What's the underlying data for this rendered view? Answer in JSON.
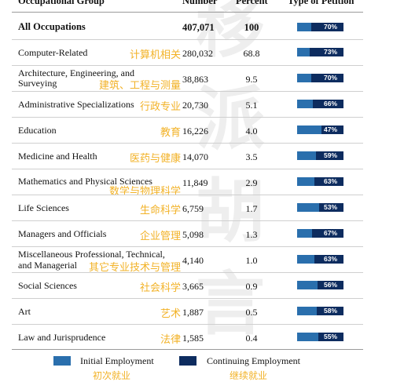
{
  "header": {
    "occupational_group": "Occupational Group",
    "number": "Number",
    "percent": "Percent",
    "type_of_petition": "Type of Petition"
  },
  "rows": [
    {
      "occupation": "All Occupations",
      "cn": "",
      "number": "407,071",
      "percent": "100",
      "initial_pct": 70,
      "label": "70%"
    },
    {
      "occupation": "Computer-Related",
      "cn": "计算机相关",
      "number": "280,032",
      "percent": "68.8",
      "initial_pct": 73,
      "label": "73%"
    },
    {
      "occupation": "Architecture, Engineering, and",
      "occupation_line2": "Surveying",
      "cn": "建筑、工程与测量",
      "number": "38,863",
      "percent": "9.5",
      "initial_pct": 70,
      "label": "70%"
    },
    {
      "occupation": "Administrative Specializations",
      "cn": "行政专业",
      "number": "20,730",
      "percent": "5.1",
      "initial_pct": 66,
      "label": "66%"
    },
    {
      "occupation": "Education",
      "cn": "教育",
      "number": "16,226",
      "percent": "4.0",
      "initial_pct": 47,
      "label": "47%"
    },
    {
      "occupation": "Medicine and Health",
      "cn": "医药与健康",
      "number": "14,070",
      "percent": "3.5",
      "initial_pct": 59,
      "label": "59%"
    },
    {
      "occupation": "Mathematics and Physical Sciences",
      "cn": "数学与物理科学",
      "number": "11,849",
      "percent": "2.9",
      "initial_pct": 63,
      "label": "63%"
    },
    {
      "occupation": "Life Sciences",
      "cn": "生命科学",
      "number": "6,759",
      "percent": "1.7",
      "initial_pct": 53,
      "label": "53%"
    },
    {
      "occupation": "Managers and Officials",
      "cn": "企业管理",
      "number": "5,098",
      "percent": "1.3",
      "initial_pct": 67,
      "label": "67%"
    },
    {
      "occupation": "Miscellaneous Professional, Technical,",
      "occupation_line2": "and Managerial",
      "cn": "其它专业技术与管理",
      "number": "4,140",
      "percent": "1.0",
      "initial_pct": 63,
      "label": "63%"
    },
    {
      "occupation": "Social Sciences",
      "cn": "社会科学",
      "number": "3,665",
      "percent": "0.9",
      "initial_pct": 56,
      "label": "56%"
    },
    {
      "occupation": "Art",
      "cn": "艺术",
      "number": "1,887",
      "percent": "0.5",
      "initial_pct": 58,
      "label": "58%"
    },
    {
      "occupation": "Law and Jurisprudence",
      "cn": "法律",
      "number": "1,585",
      "percent": "0.4",
      "initial_pct": 55,
      "label": "55%"
    }
  ],
  "legend": {
    "initial": "Initial Employment",
    "initial_cn": "初次就业",
    "continuing": "Continuing Employment",
    "continuing_cn": "继续就业"
  },
  "watermark": [
    "移",
    "派",
    "胡",
    "言"
  ],
  "colors": {
    "initial": "#2a6fad",
    "continuing": "#0d2c5f",
    "chinese_text": "#f2b227"
  }
}
